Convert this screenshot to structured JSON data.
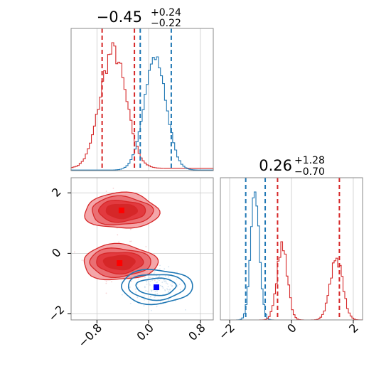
{
  "colors": {
    "red": "#d62728",
    "blue": "#1f77b4",
    "red_marker": "#ff0000",
    "blue_marker": "#0000ff"
  },
  "chart_data": [
    {
      "type": "histogram",
      "panel": "top-left",
      "title": {
        "main": "−0.45",
        "sup": "+0.24",
        "sub": "−0.22"
      },
      "xlim": [
        -1.2,
        1.0
      ],
      "series": [
        {
          "color": "red",
          "peaks_x": [
            -0.55
          ],
          "quantiles": [
            -0.72,
            -0.22
          ]
        },
        {
          "color": "blue",
          "peaks_x": [
            0.1
          ],
          "quantiles": [
            -0.13,
            0.35
          ]
        }
      ]
    },
    {
      "type": "scatter",
      "panel": "bottom-left",
      "xlim": [
        -1.2,
        1.0
      ],
      "ylim": [
        -2.2,
        2.5
      ],
      "xticks": [
        "−0.8",
        "0.0",
        "0.8"
      ],
      "yticks": [
        "2",
        "0",
        "−2"
      ],
      "xtick_values": [
        -0.8,
        0.0,
        0.8
      ],
      "ytick_values": [
        2,
        0,
        -2
      ],
      "clusters": [
        {
          "color": "red",
          "center": [
            -0.42,
            1.4
          ]
        },
        {
          "color": "red",
          "center": [
            -0.45,
            -0.3
          ]
        },
        {
          "color": "blue",
          "center": [
            0.12,
            -1.1
          ]
        }
      ],
      "markers": [
        {
          "color": "red_marker",
          "x": -0.42,
          "y": 1.42
        },
        {
          "color": "red_marker",
          "x": -0.45,
          "y": -0.32
        },
        {
          "color": "blue_marker",
          "x": 0.12,
          "y": -1.12
        }
      ]
    },
    {
      "type": "histogram",
      "panel": "bottom-right",
      "title": {
        "main": "0.26",
        "sup": "+1.28",
        "sub": "−0.70"
      },
      "xlim": [
        -2.3,
        2.3
      ],
      "xticks": [
        "−2",
        "0",
        "2"
      ],
      "xtick_values": [
        -2,
        0,
        2
      ],
      "series": [
        {
          "color": "red",
          "peaks_x": [
            -0.3,
            1.55
          ],
          "quantiles": [
            -0.45,
            1.55
          ]
        },
        {
          "color": "blue",
          "peaks_x": [
            -1.2
          ],
          "quantiles": [
            -1.48,
            -0.85
          ]
        }
      ]
    }
  ]
}
